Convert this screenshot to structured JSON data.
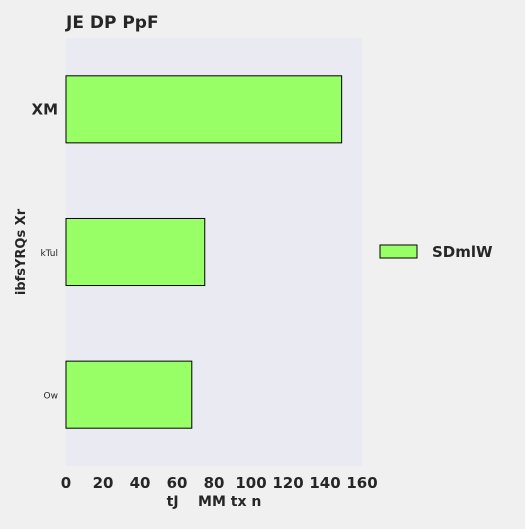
{
  "chart_data": {
    "type": "bar",
    "orientation": "horizontal",
    "title": "JE DP PpF",
    "xlabel": "tJ    MM tx n",
    "ylabel": "ibfsYRQs Xr",
    "categories": [
      "XM",
      "kTul",
      "Ow"
    ],
    "series": [
      {
        "name": "SDmlW",
        "values": [
          149,
          75,
          68
        ]
      }
    ],
    "xlim": [
      0,
      160
    ],
    "xticks": [
      0,
      20,
      40,
      60,
      80,
      100,
      120,
      140,
      160
    ],
    "legend_position": "right",
    "grid": false,
    "colors": {
      "bar_fill": "#99ff66",
      "bar_stroke": "#000000",
      "plot_background": "#eaeaf2",
      "page_background": "#f0f0f0",
      "text": "#262626"
    }
  }
}
